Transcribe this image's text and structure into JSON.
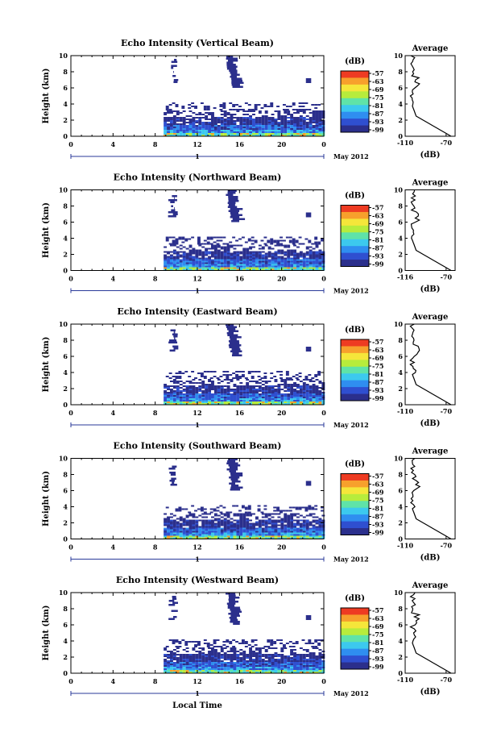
{
  "chart_data": [
    {
      "type": "heatmap",
      "title": "Echo Intensity (Vertical Beam)",
      "ylabel": "Height (km)",
      "xlim": [
        0,
        24
      ],
      "ylim": [
        0,
        10
      ],
      "x_ticks": [
        "0",
        "4",
        "8",
        "12",
        "16",
        "20",
        "0"
      ],
      "y_ticks": [
        "0",
        "2",
        "4",
        "6",
        "8",
        "10"
      ],
      "date_bar": {
        "label": "1",
        "month_label": "May 2012"
      },
      "colorbar": {
        "unit_label": "(dB)",
        "ticks": [
          "-57",
          "-63",
          "-69",
          "-75",
          "-81",
          "-87",
          "-93",
          "-99"
        ]
      },
      "profile": {
        "title": "Average",
        "xlabel": "(dB)",
        "x_ticks": [
          "-110",
          "-70"
        ],
        "xlim": [
          -110,
          -70
        ],
        "y_ticks": [
          "0",
          "2",
          "4",
          "6",
          "8",
          "10"
        ]
      }
    },
    {
      "type": "heatmap",
      "title": "Echo Intensity (Northward Beam)",
      "ylabel": "Height (km)",
      "xlim": [
        0,
        24
      ],
      "ylim": [
        0,
        10
      ],
      "x_ticks": [
        "0",
        "4",
        "8",
        "12",
        "16",
        "20",
        "0"
      ],
      "y_ticks": [
        "0",
        "2",
        "4",
        "6",
        "8",
        "10"
      ],
      "date_bar": {
        "label": "1",
        "month_label": "May 2012"
      },
      "colorbar": {
        "unit_label": "(dB)",
        "ticks": [
          "-57",
          "-63",
          "-69",
          "-75",
          "-81",
          "-87",
          "-93",
          "-99"
        ]
      },
      "profile": {
        "title": "Average",
        "xlabel": "(dB)",
        "x_ticks": [
          "-116",
          "-70"
        ],
        "xlim": [
          -116,
          -70
        ],
        "y_ticks": [
          "0",
          "2",
          "4",
          "6",
          "8",
          "10"
        ]
      }
    },
    {
      "type": "heatmap",
      "title": "Echo Intensity (Eastward Beam)",
      "ylabel": "Height (km)",
      "xlim": [
        0,
        24
      ],
      "ylim": [
        0,
        10
      ],
      "x_ticks": [
        "0",
        "4",
        "8",
        "12",
        "16",
        "20",
        "0"
      ],
      "y_ticks": [
        "0",
        "2",
        "4",
        "6",
        "8",
        "10"
      ],
      "date_bar": {
        "label": "1",
        "month_label": "May 2012"
      },
      "colorbar": {
        "unit_label": "(dB)",
        "ticks": [
          "-57",
          "-63",
          "-69",
          "-75",
          "-81",
          "-87",
          "-93",
          "-99"
        ]
      },
      "profile": {
        "title": "Average",
        "xlabel": "(dB)",
        "x_ticks": [
          "-110",
          "-70"
        ],
        "xlim": [
          -110,
          -70
        ],
        "y_ticks": [
          "0",
          "2",
          "4",
          "6",
          "8",
          "10"
        ]
      }
    },
    {
      "type": "heatmap",
      "title": "Echo Intensity (Southward Beam)",
      "ylabel": "Height (km)",
      "xlim": [
        0,
        24
      ],
      "ylim": [
        0,
        10
      ],
      "x_ticks": [
        "0",
        "4",
        "8",
        "12",
        "16",
        "20",
        "0"
      ],
      "y_ticks": [
        "0",
        "2",
        "4",
        "6",
        "8",
        "10"
      ],
      "date_bar": {
        "label": "1",
        "month_label": "May 2012"
      },
      "colorbar": {
        "unit_label": "(dB)",
        "ticks": [
          "-57",
          "-63",
          "-69",
          "-75",
          "-81",
          "-87",
          "-93",
          "-99"
        ]
      },
      "profile": {
        "title": "Average",
        "xlabel": "(dB)",
        "x_ticks": [
          "-110",
          "-70"
        ],
        "xlim": [
          -110,
          -70
        ],
        "y_ticks": [
          "0",
          "2",
          "4",
          "6",
          "8",
          "10"
        ]
      }
    },
    {
      "type": "heatmap",
      "title": "Echo Intensity (Westward Beam)",
      "ylabel": "Height (km)",
      "xlabel": "Local Time",
      "xlim": [
        0,
        24
      ],
      "ylim": [
        0,
        10
      ],
      "x_ticks": [
        "0",
        "4",
        "8",
        "12",
        "16",
        "20",
        "0"
      ],
      "y_ticks": [
        "0",
        "2",
        "4",
        "6",
        "8",
        "10"
      ],
      "date_bar": {
        "label": "1",
        "month_label": "May 2012"
      },
      "colorbar": {
        "unit_label": "(dB)",
        "ticks": [
          "-57",
          "-63",
          "-69",
          "-75",
          "-81",
          "-87",
          "-93",
          "-99"
        ]
      },
      "profile": {
        "title": "Average",
        "xlabel": "(dB)",
        "x_ticks": [
          "-110",
          "-70"
        ],
        "xlim": [
          -110,
          -70
        ],
        "y_ticks": [
          "0",
          "2",
          "4",
          "6",
          "8",
          "10"
        ]
      }
    }
  ],
  "colors": {
    "scale": [
      "#2b2f8c",
      "#2f4fd0",
      "#2f8ef0",
      "#3cc9ee",
      "#5fe3a8",
      "#b7ec3c",
      "#f5e63a",
      "#f7a02c",
      "#ee3b22"
    ],
    "axis": "#000000",
    "date_bar": "#2a3a9a"
  }
}
